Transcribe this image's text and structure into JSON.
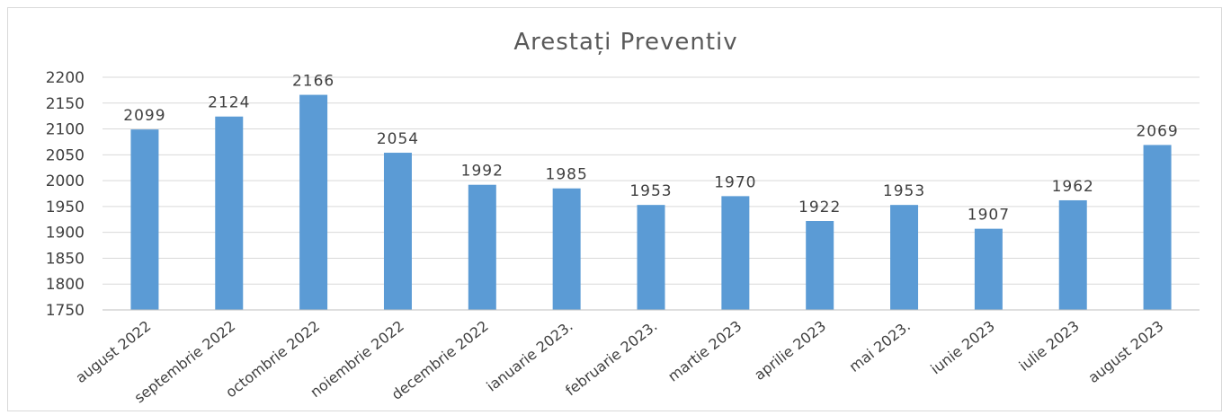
{
  "chart_data": {
    "type": "bar",
    "title": "Arestați Preventiv",
    "xlabel": "",
    "ylabel": "",
    "categories": [
      "august 2022",
      "septembrie 2022",
      "octombrie 2022",
      "noiembrie 2022",
      "decembrie 2022",
      "ianuarie 2023.",
      "februarie 2023.",
      "martie 2023",
      "aprilie 2023",
      "mai 2023.",
      "iunie 2023",
      "iulie 2023",
      "august 2023"
    ],
    "values": [
      2099,
      2124,
      2166,
      2054,
      1992,
      1985,
      1953,
      1970,
      1922,
      1953,
      1907,
      1962,
      2069
    ],
    "ylim": [
      1750,
      2200
    ],
    "yticks": [
      1750,
      1800,
      1850,
      1900,
      1950,
      2000,
      2050,
      2100,
      2150,
      2200
    ],
    "grid": true,
    "legend": "none",
    "data_labels": true,
    "colors": {
      "bar": "#5b9bd5"
    }
  }
}
